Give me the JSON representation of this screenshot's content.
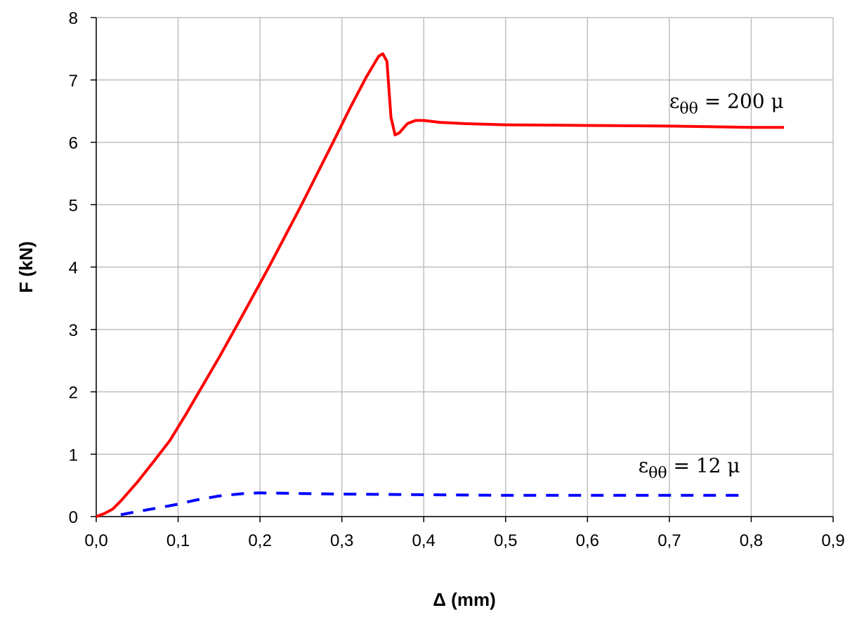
{
  "chart_data": {
    "type": "line",
    "xlabel": "Δ (mm)",
    "ylabel": "F (kN)",
    "xlim": [
      0,
      0.9
    ],
    "ylim": [
      0,
      8
    ],
    "x_ticks": [
      "0,0",
      "0,1",
      "0,2",
      "0,3",
      "0,4",
      "0,5",
      "0,6",
      "0,7",
      "0,8",
      "0,9"
    ],
    "y_ticks": [
      "0",
      "1",
      "2",
      "3",
      "4",
      "5",
      "6",
      "7",
      "8"
    ],
    "grid": true,
    "colors": {
      "series1": "#ff0000",
      "series2": "#0000ff",
      "grid": "#bfbfbf",
      "axis": "#000000"
    },
    "series": [
      {
        "line_style": "solid",
        "x": [
          0.0,
          0.01,
          0.02,
          0.03,
          0.05,
          0.07,
          0.09,
          0.11,
          0.13,
          0.15,
          0.17,
          0.19,
          0.21,
          0.23,
          0.25,
          0.27,
          0.29,
          0.31,
          0.33,
          0.345,
          0.35,
          0.355,
          0.36,
          0.365,
          0.37,
          0.38,
          0.39,
          0.4,
          0.42,
          0.45,
          0.5,
          0.6,
          0.7,
          0.8,
          0.84
        ],
        "y": [
          0.0,
          0.05,
          0.12,
          0.25,
          0.55,
          0.88,
          1.22,
          1.65,
          2.1,
          2.55,
          3.02,
          3.5,
          3.98,
          4.48,
          4.98,
          5.5,
          6.02,
          6.55,
          7.05,
          7.38,
          7.42,
          7.3,
          6.4,
          6.12,
          6.15,
          6.3,
          6.35,
          6.35,
          6.32,
          6.3,
          6.28,
          6.27,
          6.26,
          6.24,
          6.24
        ]
      },
      {
        "line_style": "dashed",
        "x": [
          0.03,
          0.05,
          0.08,
          0.1,
          0.12,
          0.15,
          0.18,
          0.2,
          0.25,
          0.3,
          0.4,
          0.5,
          0.6,
          0.7,
          0.79
        ],
        "y": [
          0.03,
          0.08,
          0.15,
          0.2,
          0.26,
          0.33,
          0.37,
          0.38,
          0.37,
          0.36,
          0.35,
          0.34,
          0.34,
          0.34,
          0.34
        ]
      }
    ],
    "annotations": [
      {
        "symbol": "ε",
        "subscript": "θθ",
        "text": " = 200 μ",
        "x": 0.7,
        "y": 6.55
      },
      {
        "symbol": "ε",
        "subscript": "θθ",
        "text": " = 12 μ",
        "x": 0.662,
        "y": 0.71
      }
    ]
  }
}
